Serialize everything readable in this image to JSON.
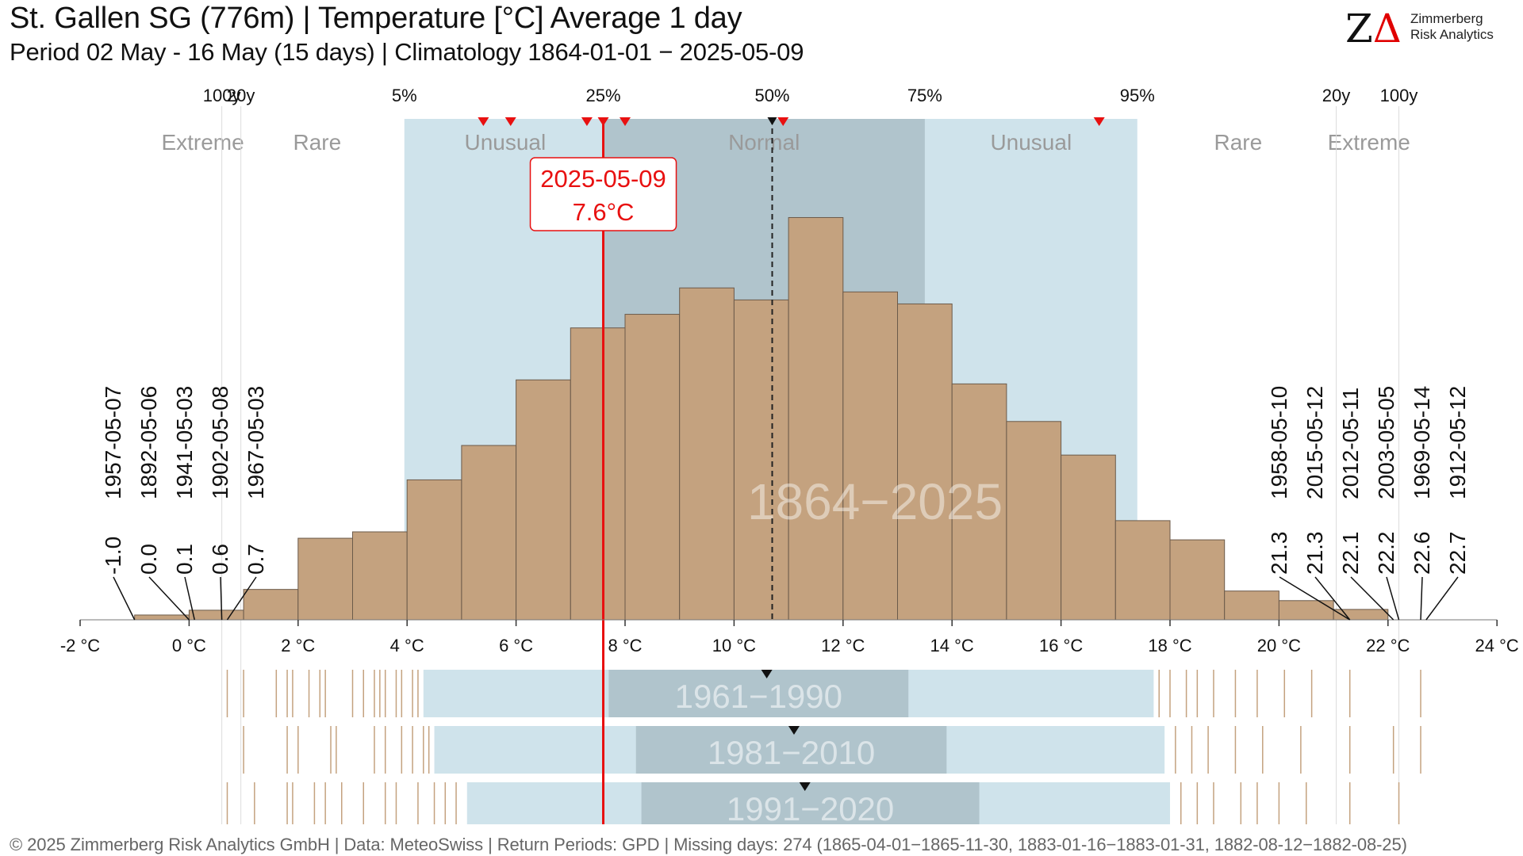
{
  "header": {
    "title": "St. Gallen  SG (776m) | Temperature [°C] Average 1 day",
    "subtitle": "Period 02 May - 16 May (15 days) | Climatology 1864-01-01 − 2025-05-09"
  },
  "logo": {
    "line1": "Zimmerberg",
    "line2": "Risk Analytics",
    "mark_z": "Z",
    "mark_delta": "Δ"
  },
  "footer": {
    "text": "©  2025 Zimmerberg Risk Analytics GmbH | Data: MeteoSwiss | Return Periods: GPD | Missing days: 274 (1865-04-01−1865-11-30, 1883-01-16−1883-01-31, 1882-08-12−1882-08-25)"
  },
  "chart_data": {
    "type": "bar",
    "x_unit": "°C",
    "xlim": [
      -2,
      24
    ],
    "x_ticks": [
      -2,
      0,
      2,
      4,
      6,
      8,
      10,
      12,
      14,
      16,
      18,
      20,
      22,
      24
    ],
    "x_tick_labels": [
      "-2 °C",
      "0 °C",
      "2 °C",
      "4 °C",
      "6 °C",
      "8 °C",
      "10 °C",
      "12 °C",
      "14 °C",
      "16 °C",
      "18 °C",
      "20 °C",
      "22 °C",
      "24 °C"
    ],
    "histogram": {
      "bin_edges": [
        -1,
        0,
        1,
        2,
        3,
        4,
        5,
        6,
        7,
        8,
        9,
        10,
        11,
        12,
        13,
        14,
        15,
        16,
        17,
        18,
        19,
        20,
        21,
        22
      ],
      "values": [
        0.6,
        1.2,
        3.8,
        10.2,
        11,
        17.5,
        21.8,
        30,
        36.5,
        38.2,
        41.5,
        40,
        50.3,
        41,
        39.5,
        29.5,
        24.8,
        20.6,
        12.4,
        10,
        3.6,
        2.4,
        1.3
      ]
    },
    "period_label": "1864−2025",
    "percentiles": [
      {
        "label": "100y",
        "x": 0.6
      },
      {
        "label": "20y",
        "x": 0.95
      },
      {
        "label": "5%",
        "x": 3.95
      },
      {
        "label": "25%",
        "x": 7.6
      },
      {
        "label": "50%",
        "x": 10.7
      },
      {
        "label": "75%",
        "x": 13.5
      },
      {
        "label": "95%",
        "x": 17.4
      },
      {
        "label": "20y",
        "x": 21.05
      },
      {
        "label": "100y",
        "x": 22.2
      }
    ],
    "bands": {
      "unusual_low": 3.95,
      "normal_low": 7.6,
      "normal_high": 13.5,
      "unusual_high": 17.4
    },
    "categories": [
      {
        "label": "Extreme",
        "x": 0.25
      },
      {
        "label": "Rare",
        "x": 2.35
      },
      {
        "label": "Unusual",
        "x": 5.8
      },
      {
        "label": "Normal",
        "x": 10.55
      },
      {
        "label": "Unusual",
        "x": 15.45
      },
      {
        "label": "Rare",
        "x": 19.25
      },
      {
        "label": "Extreme",
        "x": 21.65
      }
    ],
    "median": 10.7,
    "current": {
      "date": "2025-05-09",
      "value": 7.6,
      "label": "7.6°C"
    },
    "recent_markers": [
      5.4,
      5.9,
      7.3,
      7.6,
      8.0,
      10.9,
      16.7
    ],
    "extremes_low": [
      {
        "date": "1957-05-07",
        "value": -1.0,
        "label": "-1.0"
      },
      {
        "date": "1892-05-06",
        "value": 0.0,
        "label": "0.0"
      },
      {
        "date": "1941-05-03",
        "value": 0.1,
        "label": "0.1"
      },
      {
        "date": "1902-05-08",
        "value": 0.6,
        "label": "0.6"
      },
      {
        "date": "1967-05-03",
        "value": 0.7,
        "label": "0.7"
      }
    ],
    "extremes_high": [
      {
        "date": "1958-05-10",
        "value": 21.3,
        "label": "21.3"
      },
      {
        "date": "2015-05-12",
        "value": 21.3,
        "label": "21.3"
      },
      {
        "date": "2012-05-11",
        "value": 22.1,
        "label": "22.1"
      },
      {
        "date": "2003-05-05",
        "value": 22.2,
        "label": "22.2"
      },
      {
        "date": "1969-05-14",
        "value": 22.6,
        "label": "22.6"
      },
      {
        "date": "1912-05-12",
        "value": 22.7,
        "label": "22.7"
      }
    ],
    "climatologies": [
      {
        "label": "1961−1990",
        "p5": 4.3,
        "p25": 7.7,
        "p50": 10.6,
        "p75": 13.2,
        "p95": 17.7,
        "observations": [
          0.7,
          1.0,
          1.6,
          1.8,
          1.9,
          2.2,
          2.4,
          2.5,
          3.0,
          3.2,
          3.4,
          3.5,
          3.6,
          3.8,
          3.9,
          4.1,
          4.2,
          17.8,
          18.0,
          18.3,
          18.5,
          18.8,
          19.2,
          19.6,
          20.1,
          20.6,
          21.3,
          22.6
        ]
      },
      {
        "label": "1981−2010",
        "p5": 4.5,
        "p25": 8.2,
        "p50": 11.1,
        "p75": 13.9,
        "p95": 17.9,
        "observations": [
          1.0,
          1.8,
          2.0,
          2.6,
          2.7,
          3.4,
          3.6,
          3.9,
          4.1,
          4.3,
          4.4,
          18.1,
          18.4,
          18.7,
          19.2,
          19.7,
          20.4,
          21.3,
          22.1,
          22.6
        ]
      },
      {
        "label": "1991−2020",
        "p5": 5.1,
        "p25": 8.3,
        "p50": 11.3,
        "p75": 14.5,
        "p95": 18.0,
        "observations": [
          0.7,
          1.2,
          1.8,
          1.9,
          2.3,
          2.5,
          2.8,
          3.2,
          3.6,
          3.8,
          4.2,
          4.5,
          4.7,
          4.9,
          18.2,
          18.5,
          18.8,
          19.3,
          19.6,
          20.0,
          20.5,
          21.3,
          22.2
        ]
      }
    ]
  }
}
